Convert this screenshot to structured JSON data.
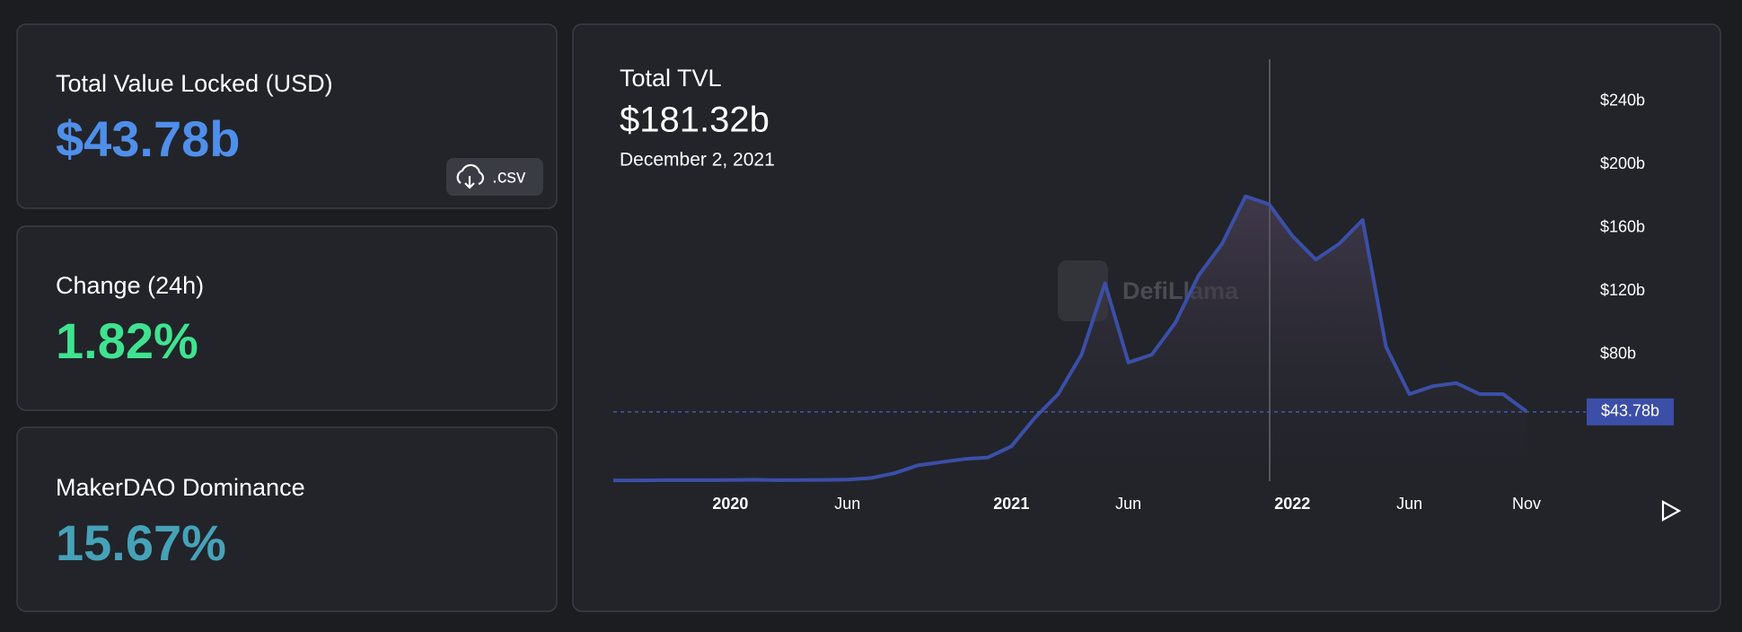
{
  "cards": [
    {
      "label": "Total Value Locked (USD)",
      "value": "$43.78b"
    },
    {
      "label": "Change (24h)",
      "value": "1.82%"
    },
    {
      "label": "MakerDAO Dominance",
      "value": "15.67%"
    }
  ],
  "csv_button": ".csv",
  "chart_data": {
    "type": "line",
    "title": "Total TVL",
    "tooltip": {
      "value": 181.32,
      "value_label": "$181.32b",
      "date": "December 2, 2021"
    },
    "watermark": "DefiLlama",
    "x": [
      "2019-08",
      "2019-09",
      "2019-10",
      "2019-11",
      "2019-12",
      "2020-01",
      "2020-02",
      "2020-03",
      "2020-04",
      "2020-05",
      "2020-06",
      "2020-07",
      "2020-08",
      "2020-09",
      "2020-10",
      "2020-11",
      "2020-12",
      "2021-01",
      "2021-02",
      "2021-03",
      "2021-04",
      "2021-05",
      "2021-06",
      "2021-07",
      "2021-08",
      "2021-09",
      "2021-10",
      "2021-11",
      "2021-12",
      "2022-01",
      "2022-02",
      "2022-03",
      "2022-04",
      "2022-05",
      "2022-06",
      "2022-07",
      "2022-08",
      "2022-09",
      "2022-10",
      "2022-11"
    ],
    "values": [
      0.5,
      0.5,
      0.6,
      0.6,
      0.6,
      0.7,
      0.9,
      0.6,
      0.7,
      0.8,
      1,
      2,
      5,
      10,
      12,
      14,
      15,
      22,
      40,
      55,
      80,
      125,
      75,
      80,
      100,
      130,
      150,
      180,
      175,
      155,
      140,
      150,
      165,
      85,
      55,
      60,
      62,
      55,
      55,
      44
    ],
    "color": "#3b4fa8",
    "xlim": [
      "2019-08",
      "2022-11"
    ],
    "xticks": [
      {
        "value": "2020-01",
        "label": "2020"
      },
      {
        "value": "2020-06",
        "label": "Jun"
      },
      {
        "value": "2021-01",
        "label": "2021"
      },
      {
        "value": "2021-06",
        "label": "Jun"
      },
      {
        "value": "2022-01",
        "label": "2022"
      },
      {
        "value": "2022-06",
        "label": "Jun"
      },
      {
        "value": "2022-11",
        "label": "Nov"
      }
    ],
    "ylim": [
      0,
      270
    ],
    "yticks": [
      {
        "value": 80,
        "label": "$80b"
      },
      {
        "value": 120,
        "label": "$120b"
      },
      {
        "value": 160,
        "label": "$160b"
      },
      {
        "value": 200,
        "label": "$200b"
      },
      {
        "value": 240,
        "label": "$240b"
      }
    ],
    "reference_line": {
      "value": 43.78,
      "label": "$43.78b"
    }
  }
}
